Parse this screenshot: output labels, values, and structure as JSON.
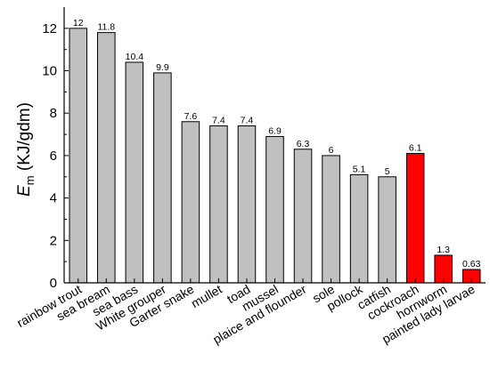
{
  "chart_data": {
    "type": "bar",
    "title": "",
    "xlabel": "",
    "ylabel_symbol": "E",
    "ylabel_subscript": "m",
    "ylabel_unit": " (KJ/gdm)",
    "ylim": [
      0,
      13
    ],
    "yticks": [
      "0",
      "2",
      "4",
      "6",
      "8",
      "10",
      "12"
    ],
    "categories": [
      "rainbow trout",
      "sea bream",
      "sea bass",
      "White grouper",
      "Garter snake",
      "mullet",
      "toad",
      "mussel",
      "plaice and flounder",
      "sole",
      "pollock",
      "catfish",
      "cockroach",
      "hornworm",
      "painted lady larvae"
    ],
    "values": [
      12,
      11.8,
      10.4,
      9.9,
      7.6,
      7.4,
      7.4,
      6.9,
      6.3,
      6,
      5.1,
      5,
      6.1,
      1.3,
      0.63
    ],
    "value_labels": [
      "12",
      "11.8",
      "10.4",
      "9.9",
      "7.6",
      "7.4",
      "7.4",
      "6.9",
      "6.3",
      "6",
      "5.1",
      "5",
      "6.1",
      "1.3",
      "0.63"
    ],
    "bar_colors": [
      "#c0c0c0",
      "#c0c0c0",
      "#c0c0c0",
      "#c0c0c0",
      "#c0c0c0",
      "#c0c0c0",
      "#c0c0c0",
      "#c0c0c0",
      "#c0c0c0",
      "#c0c0c0",
      "#c0c0c0",
      "#c0c0c0",
      "#ff0000",
      "#ff0000",
      "#ff0000"
    ],
    "grid": false,
    "legend": "none"
  }
}
